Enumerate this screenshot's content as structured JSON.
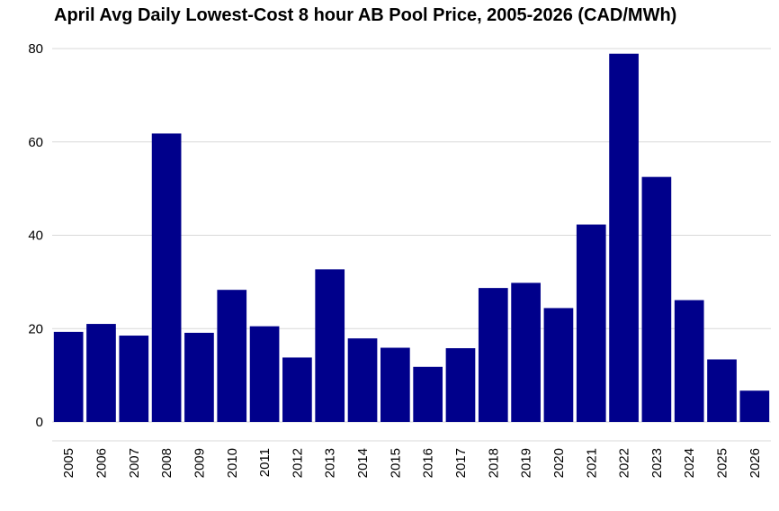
{
  "chart_data": {
    "type": "bar",
    "title": "April Avg Daily Lowest-Cost 8 hour AB Pool Price, 2005-2026 (CAD/MWh)",
    "xlabel": "",
    "ylabel": "",
    "categories": [
      "2005",
      "2006",
      "2007",
      "2008",
      "2009",
      "2010",
      "2011",
      "2012",
      "2013",
      "2014",
      "2015",
      "2016",
      "2017",
      "2018",
      "2019",
      "2020",
      "2021",
      "2022",
      "2023",
      "2024",
      "2025",
      "2026"
    ],
    "values": [
      19.3,
      21.0,
      18.5,
      61.8,
      19.1,
      28.3,
      20.5,
      13.8,
      32.7,
      17.9,
      15.9,
      11.8,
      15.8,
      28.7,
      29.8,
      24.4,
      42.3,
      78.9,
      52.5,
      26.1,
      13.4,
      6.7
    ],
    "yticks": [
      "0",
      "20",
      "40",
      "60",
      "80"
    ],
    "ylim": [
      -2.5,
      83
    ],
    "grid": "horizontal",
    "legend": "none",
    "colors": {
      "bar": "#00008B",
      "grid": "#D9D9D9",
      "text": "#000000"
    }
  }
}
